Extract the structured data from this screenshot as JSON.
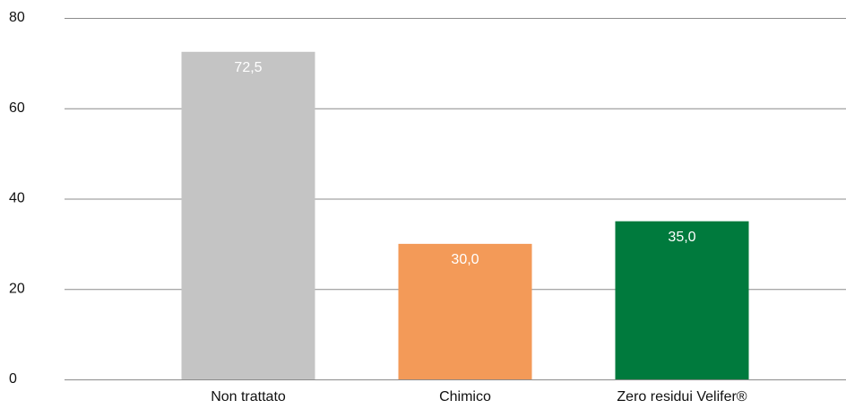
{
  "chart_data": {
    "type": "bar",
    "categories": [
      "Non trattato",
      "Chimico",
      "Zero residui Velifer®"
    ],
    "values": [
      72.5,
      30,
      35
    ],
    "value_labels": [
      "72,5",
      "30,0",
      "35,0"
    ],
    "colors": [
      "#c4c4c4",
      "#f39a58",
      "#007a3d"
    ],
    "ylim": [
      0,
      80
    ],
    "yticks": [
      0,
      20,
      40,
      60,
      80
    ],
    "grid": true
  }
}
